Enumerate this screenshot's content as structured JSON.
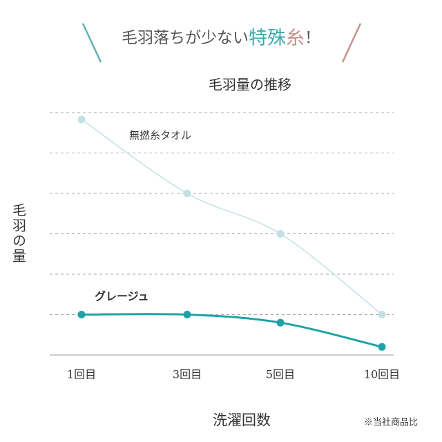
{
  "chart_data": {
    "type": "line",
    "headline": [
      "毛羽落ちが少ない",
      "特殊",
      "糸",
      "！"
    ],
    "headline_colors": [
      "#555555",
      "#3aa9ad",
      "#c7918d",
      "#555555"
    ],
    "title": "毛羽量の推移",
    "y_label": "毛羽の量",
    "x_label": "洗濯回数",
    "note": "※当社商品比",
    "categories": [
      "1回目",
      "3回目",
      "5回目",
      "10回目"
    ],
    "series": [
      {
        "name": "無撚糸タオル",
        "color": "#c3e1e4",
        "values": [
          5.83,
          4,
          3,
          1
        ]
      },
      {
        "name": "グレージュ",
        "color": "#1ea2a7",
        "values": [
          1,
          1,
          0.8,
          0.2
        ]
      }
    ],
    "ylim": [
      0,
      6
    ],
    "yticks": [
      1,
      2,
      3,
      4,
      5,
      6
    ],
    "grid": true
  }
}
